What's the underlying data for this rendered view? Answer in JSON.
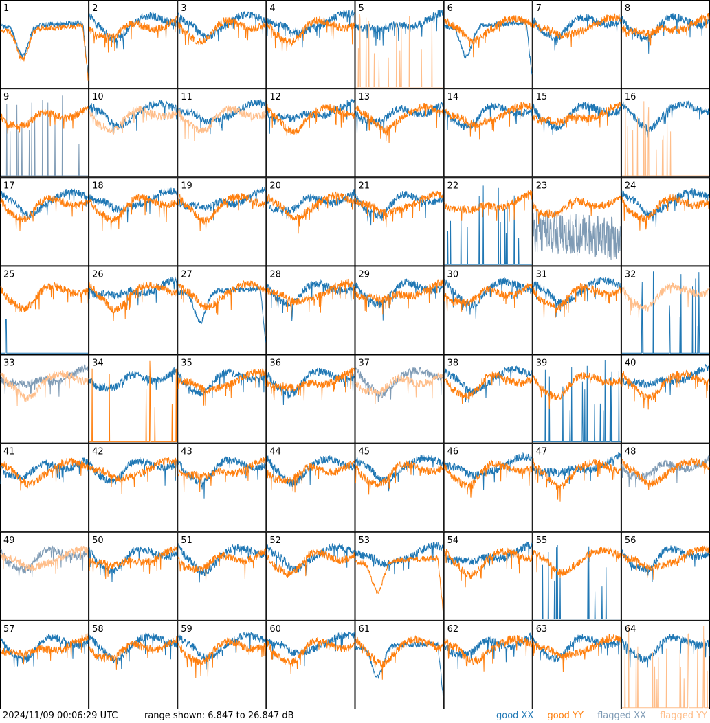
{
  "footer": {
    "timestamp": "2024/11/09 00:06:29 UTC",
    "range_text": "range shown: 6.847 to 26.847 dB"
  },
  "legend": {
    "good_xx": "good XX",
    "good_yy": "good YY",
    "flagged_xx": "flagged XX",
    "flagged_yy": "flagged YY"
  },
  "colors": {
    "good_xx": "#1f77b4",
    "good_yy": "#ff7f0e",
    "flagged_xx": "#7f9bb5",
    "flagged_yy": "#ffbe8a",
    "frame": "#000000",
    "background": "#ffffff"
  },
  "chart_data": {
    "type": "line",
    "grid": {
      "rows": 8,
      "cols": 8
    },
    "ylim": [
      6.847,
      26.847
    ],
    "yunit": "dB",
    "panels": [
      {
        "id": "1",
        "xx": "good",
        "yy": "good",
        "shape": "dip"
      },
      {
        "id": "2",
        "xx": "good",
        "yy": "good",
        "shape": "normal"
      },
      {
        "id": "3",
        "xx": "good",
        "yy": "good",
        "shape": "normal"
      },
      {
        "id": "4",
        "xx": "good",
        "yy": "good",
        "shape": "normal"
      },
      {
        "id": "5",
        "xx": "good",
        "yy": "flagged",
        "yy_shape": "spikes"
      },
      {
        "id": "6",
        "xx": "good",
        "yy": "good",
        "xx_shape": "dip"
      },
      {
        "id": "7",
        "xx": "good",
        "yy": "good",
        "shape": "normal"
      },
      {
        "id": "8",
        "xx": "good",
        "yy": "good",
        "shape": "normal"
      },
      {
        "id": "9",
        "xx": "flagged",
        "yy": "good",
        "xx_shape": "spikes"
      },
      {
        "id": "10",
        "xx": "good",
        "yy": "flagged",
        "shape": "normal"
      },
      {
        "id": "11",
        "xx": "good",
        "yy": "flagged",
        "shape": "normal"
      },
      {
        "id": "12",
        "xx": "good",
        "yy": "good",
        "shape": "normal"
      },
      {
        "id": "13",
        "xx": "good",
        "yy": "good",
        "shape": "normal"
      },
      {
        "id": "14",
        "xx": "good",
        "yy": "good",
        "shape": "normal"
      },
      {
        "id": "15",
        "xx": "good",
        "yy": "good",
        "shape": "normal"
      },
      {
        "id": "16",
        "xx": "good",
        "yy": "flagged",
        "yy_shape": "spikes"
      },
      {
        "id": "17",
        "xx": "good",
        "yy": "good",
        "shape": "normal"
      },
      {
        "id": "18",
        "xx": "good",
        "yy": "good",
        "shape": "normal"
      },
      {
        "id": "19",
        "xx": "good",
        "yy": "good",
        "shape": "normal"
      },
      {
        "id": "20",
        "xx": "good",
        "yy": "good",
        "shape": "normal"
      },
      {
        "id": "21",
        "xx": "good",
        "yy": "good",
        "shape": "normal"
      },
      {
        "id": "22",
        "xx": "good",
        "yy": "good",
        "xx_shape": "spikes"
      },
      {
        "id": "23",
        "xx": "flagged",
        "yy": "good",
        "xx_shape": "noisy"
      },
      {
        "id": "24",
        "xx": "good",
        "yy": "good",
        "shape": "normal"
      },
      {
        "id": "25",
        "xx": "good",
        "yy": "good",
        "xx_shape": "hidden"
      },
      {
        "id": "26",
        "xx": "good",
        "yy": "good",
        "shape": "normal"
      },
      {
        "id": "27",
        "xx": "good",
        "yy": "good",
        "xx_shape": "dip"
      },
      {
        "id": "28",
        "xx": "good",
        "yy": "good",
        "shape": "normal"
      },
      {
        "id": "29",
        "xx": "good",
        "yy": "good",
        "shape": "normal"
      },
      {
        "id": "30",
        "xx": "good",
        "yy": "good",
        "shape": "normal"
      },
      {
        "id": "31",
        "xx": "good",
        "yy": "good",
        "shape": "normal"
      },
      {
        "id": "32",
        "xx": "good",
        "yy": "flagged",
        "xx_shape": "spikes"
      },
      {
        "id": "33",
        "xx": "flagged",
        "yy": "flagged",
        "shape": "normal"
      },
      {
        "id": "34",
        "xx": "good",
        "yy": "good",
        "yy_shape": "spikes"
      },
      {
        "id": "35",
        "xx": "good",
        "yy": "good",
        "shape": "normal"
      },
      {
        "id": "36",
        "xx": "good",
        "yy": "good",
        "shape": "normal"
      },
      {
        "id": "37",
        "xx": "flagged",
        "yy": "flagged",
        "shape": "normal"
      },
      {
        "id": "38",
        "xx": "good",
        "yy": "good",
        "shape": "normal"
      },
      {
        "id": "39",
        "xx": "good",
        "yy": "good",
        "xx_shape": "spikes"
      },
      {
        "id": "40",
        "xx": "good",
        "yy": "good",
        "shape": "normal"
      },
      {
        "id": "41",
        "xx": "good",
        "yy": "good",
        "shape": "normal"
      },
      {
        "id": "42",
        "xx": "good",
        "yy": "good",
        "shape": "normal"
      },
      {
        "id": "43",
        "xx": "good",
        "yy": "good",
        "shape": "normal"
      },
      {
        "id": "44",
        "xx": "good",
        "yy": "good",
        "shape": "normal"
      },
      {
        "id": "45",
        "xx": "good",
        "yy": "good",
        "shape": "normal"
      },
      {
        "id": "46",
        "xx": "good",
        "yy": "good",
        "shape": "normal"
      },
      {
        "id": "47",
        "xx": "good",
        "yy": "good",
        "shape": "normal"
      },
      {
        "id": "48",
        "xx": "flagged",
        "yy": "good",
        "shape": "normal"
      },
      {
        "id": "49",
        "xx": "flagged",
        "yy": "flagged",
        "shape": "normal"
      },
      {
        "id": "50",
        "xx": "good",
        "yy": "good",
        "shape": "normal"
      },
      {
        "id": "51",
        "xx": "good",
        "yy": "good",
        "shape": "normal"
      },
      {
        "id": "52",
        "xx": "good",
        "yy": "good",
        "shape": "normal"
      },
      {
        "id": "53",
        "xx": "good",
        "yy": "good",
        "yy_shape": "dip"
      },
      {
        "id": "54",
        "xx": "good",
        "yy": "good",
        "shape": "normal"
      },
      {
        "id": "55",
        "xx": "good",
        "yy": "good",
        "xx_shape": "spikes"
      },
      {
        "id": "56",
        "xx": "good",
        "yy": "good",
        "shape": "normal"
      },
      {
        "id": "57",
        "xx": "good",
        "yy": "good",
        "shape": "normal"
      },
      {
        "id": "58",
        "xx": "good",
        "yy": "good",
        "shape": "normal"
      },
      {
        "id": "59",
        "xx": "good",
        "yy": "good",
        "shape": "normal"
      },
      {
        "id": "60",
        "xx": "good",
        "yy": "good",
        "shape": "normal"
      },
      {
        "id": "61",
        "xx": "good",
        "yy": "good",
        "xx_shape": "dip"
      },
      {
        "id": "62",
        "xx": "good",
        "yy": "good",
        "shape": "normal"
      },
      {
        "id": "63",
        "xx": "good",
        "yy": "good",
        "shape": "normal"
      },
      {
        "id": "64",
        "xx": "good",
        "yy": "flagged",
        "yy_shape": "spikes"
      }
    ]
  }
}
